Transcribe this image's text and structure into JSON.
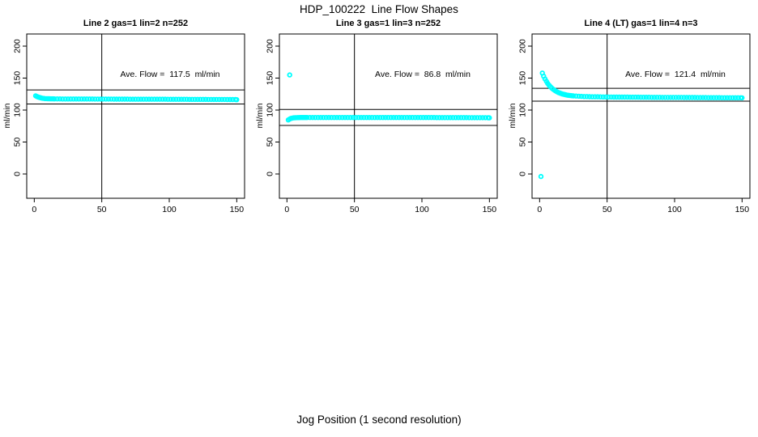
{
  "figure_title": "HDP_100222  Line Flow Shapes",
  "x_axis_title": "Jog Position (1 second resolution)",
  "colors": {
    "points": "#00FFFF",
    "axis": "#000000",
    "background": "#FFFFFF"
  },
  "chart_data": [
    {
      "type": "scatter",
      "title": "Line 2 gas=1 lin=2 n=252",
      "gas": 1,
      "lin": 2,
      "n": 252,
      "ave_flow": 117.5,
      "ave_flow_label": "Ave. Flow =  117.5  ml/min",
      "ylabel": "ml/min",
      "xticks": [
        0,
        50,
        100,
        150
      ],
      "yticks": [
        0,
        50,
        100,
        150,
        200
      ],
      "xlim": [
        -5.6,
        155.8
      ],
      "ylim": [
        -38,
        219
      ],
      "grid": false,
      "legend": false,
      "vline_x": 50,
      "hlines": [
        131.5,
        109.5
      ],
      "points": [
        [
          1,
          122.3
        ],
        [
          2,
          121.2
        ],
        [
          3,
          120.3
        ],
        [
          4,
          119.6
        ],
        [
          5,
          119.0
        ],
        [
          6,
          118.5
        ],
        [
          7,
          118.2
        ],
        [
          8,
          117.9
        ],
        [
          9,
          117.8
        ],
        [
          10,
          117.7
        ],
        [
          11,
          117.7
        ],
        [
          12,
          117.6
        ],
        [
          13,
          117.6
        ],
        [
          14,
          117.6
        ],
        [
          15,
          117.5
        ],
        [
          17,
          117.5
        ],
        [
          19,
          117.5
        ],
        [
          21,
          117.4
        ],
        [
          23,
          117.4
        ],
        [
          25,
          117.4
        ],
        [
          27,
          117.4
        ],
        [
          29,
          117.4
        ],
        [
          31,
          117.4
        ],
        [
          33,
          117.3
        ],
        [
          35,
          117.3
        ],
        [
          37,
          117.3
        ],
        [
          39,
          117.3
        ],
        [
          41,
          117.3
        ],
        [
          43,
          117.3
        ],
        [
          45,
          117.2
        ],
        [
          47,
          117.2
        ],
        [
          49,
          117.2
        ],
        [
          51,
          117.2
        ],
        [
          53,
          117.2
        ],
        [
          55,
          117.2
        ],
        [
          57,
          117.2
        ],
        [
          59,
          117.1
        ],
        [
          61,
          117.1
        ],
        [
          63,
          117.1
        ],
        [
          65,
          117.1
        ],
        [
          67,
          117.1
        ],
        [
          69,
          117.1
        ],
        [
          71,
          117.0
        ],
        [
          73,
          117.0
        ],
        [
          75,
          117.0
        ],
        [
          77,
          117.0
        ],
        [
          79,
          117.0
        ],
        [
          81,
          117.0
        ],
        [
          83,
          117.0
        ],
        [
          85,
          116.9
        ],
        [
          87,
          116.9
        ],
        [
          89,
          116.9
        ],
        [
          91,
          116.9
        ],
        [
          93,
          116.9
        ],
        [
          95,
          116.9
        ],
        [
          97,
          116.9
        ],
        [
          99,
          116.8
        ],
        [
          101,
          116.8
        ],
        [
          103,
          116.8
        ],
        [
          105,
          116.8
        ],
        [
          107,
          116.8
        ],
        [
          109,
          116.8
        ],
        [
          111,
          116.8
        ],
        [
          113,
          116.8
        ],
        [
          115,
          116.7
        ],
        [
          117,
          116.7
        ],
        [
          119,
          116.7
        ],
        [
          121,
          116.7
        ],
        [
          123,
          116.7
        ],
        [
          125,
          116.7
        ],
        [
          127,
          116.7
        ],
        [
          129,
          116.6
        ],
        [
          131,
          116.6
        ],
        [
          133,
          116.6
        ],
        [
          135,
          116.6
        ],
        [
          137,
          116.6
        ],
        [
          139,
          116.6
        ],
        [
          141,
          116.6
        ],
        [
          143,
          116.5
        ],
        [
          145,
          116.5
        ],
        [
          147,
          116.5
        ],
        [
          149,
          116.4
        ],
        [
          150,
          116.2
        ]
      ]
    },
    {
      "type": "scatter",
      "title": "Line 3 gas=1 lin=3 n=252",
      "gas": 1,
      "lin": 3,
      "n": 252,
      "ave_flow": 86.8,
      "ave_flow_label": "Ave. Flow =  86.8  ml/min",
      "ylabel": "ml/min",
      "xticks": [
        0,
        50,
        100,
        150
      ],
      "yticks": [
        0,
        50,
        100,
        150,
        200
      ],
      "xlim": [
        -5.6,
        155.8
      ],
      "ylim": [
        -38,
        219
      ],
      "grid": false,
      "legend": false,
      "vline_x": 50,
      "hlines": [
        101,
        76
      ],
      "points": [
        [
          2,
          155
        ],
        [
          1,
          84.6
        ],
        [
          2,
          86.0
        ],
        [
          3,
          86.9
        ],
        [
          4,
          87.4
        ],
        [
          5,
          87.8
        ],
        [
          6,
          88.0
        ],
        [
          7,
          88.1
        ],
        [
          8,
          88.2
        ],
        [
          9,
          88.2
        ],
        [
          10,
          88.3
        ],
        [
          11,
          88.3
        ],
        [
          12,
          88.3
        ],
        [
          13,
          88.3
        ],
        [
          14,
          88.3
        ],
        [
          15,
          88.4
        ],
        [
          17,
          88.4
        ],
        [
          19,
          88.4
        ],
        [
          21,
          88.4
        ],
        [
          23,
          88.4
        ],
        [
          25,
          88.4
        ],
        [
          27,
          88.4
        ],
        [
          29,
          88.4
        ],
        [
          31,
          88.4
        ],
        [
          33,
          88.4
        ],
        [
          35,
          88.4
        ],
        [
          37,
          88.4
        ],
        [
          39,
          88.4
        ],
        [
          41,
          88.4
        ],
        [
          43,
          88.4
        ],
        [
          45,
          88.4
        ],
        [
          47,
          88.4
        ],
        [
          49,
          88.4
        ],
        [
          51,
          88.4
        ],
        [
          53,
          88.4
        ],
        [
          55,
          88.4
        ],
        [
          57,
          88.4
        ],
        [
          59,
          88.4
        ],
        [
          61,
          88.4
        ],
        [
          63,
          88.4
        ],
        [
          65,
          88.4
        ],
        [
          67,
          88.4
        ],
        [
          69,
          88.4
        ],
        [
          71,
          88.4
        ],
        [
          73,
          88.4
        ],
        [
          75,
          88.4
        ],
        [
          77,
          88.3
        ],
        [
          79,
          88.3
        ],
        [
          81,
          88.3
        ],
        [
          83,
          88.3
        ],
        [
          85,
          88.3
        ],
        [
          87,
          88.3
        ],
        [
          89,
          88.3
        ],
        [
          91,
          88.3
        ],
        [
          93,
          88.3
        ],
        [
          95,
          88.3
        ],
        [
          97,
          88.3
        ],
        [
          99,
          88.3
        ],
        [
          101,
          88.3
        ],
        [
          103,
          88.3
        ],
        [
          105,
          88.3
        ],
        [
          107,
          88.3
        ],
        [
          109,
          88.3
        ],
        [
          111,
          88.2
        ],
        [
          113,
          88.2
        ],
        [
          115,
          88.2
        ],
        [
          117,
          88.2
        ],
        [
          119,
          88.2
        ],
        [
          121,
          88.2
        ],
        [
          123,
          88.2
        ],
        [
          125,
          88.2
        ],
        [
          127,
          88.2
        ],
        [
          129,
          88.2
        ],
        [
          131,
          88.2
        ],
        [
          133,
          88.2
        ],
        [
          135,
          88.1
        ],
        [
          137,
          88.1
        ],
        [
          139,
          88.1
        ],
        [
          141,
          88.1
        ],
        [
          143,
          88.1
        ],
        [
          145,
          88.1
        ],
        [
          147,
          88.1
        ],
        [
          149,
          88.0
        ],
        [
          150,
          87.9
        ]
      ]
    },
    {
      "type": "scatter",
      "title": "Line 4 (LT) gas=1 lin=4 n=3",
      "gas": 1,
      "lin": 4,
      "n": 3,
      "ave_flow": 121.4,
      "ave_flow_label": "Ave. Flow =  121.4  ml/min",
      "ylabel": "ml/min",
      "xticks": [
        0,
        50,
        100,
        150
      ],
      "yticks": [
        0,
        50,
        100,
        150,
        200
      ],
      "xlim": [
        -5.6,
        155.8
      ],
      "ylim": [
        -38,
        219
      ],
      "grid": false,
      "legend": false,
      "vline_x": 50,
      "hlines": [
        134,
        114
      ],
      "points": [
        [
          1,
          -4
        ],
        [
          2,
          157.8
        ],
        [
          3,
          152.9
        ],
        [
          4,
          148.6
        ],
        [
          5,
          144.9
        ],
        [
          6,
          141.7
        ],
        [
          7,
          138.9
        ],
        [
          8,
          136.5
        ],
        [
          9,
          134.4
        ],
        [
          10,
          132.6
        ],
        [
          11,
          131.0
        ],
        [
          12,
          129.7
        ],
        [
          13,
          128.5
        ],
        [
          14,
          127.4
        ],
        [
          15,
          126.6
        ],
        [
          16,
          125.8
        ],
        [
          17,
          125.1
        ],
        [
          18,
          124.6
        ],
        [
          19,
          124.0
        ],
        [
          20,
          123.6
        ],
        [
          21,
          123.2
        ],
        [
          22,
          122.9
        ],
        [
          23,
          122.6
        ],
        [
          24,
          122.4
        ],
        [
          25,
          122.2
        ],
        [
          27,
          121.9
        ],
        [
          29,
          121.6
        ],
        [
          31,
          121.4
        ],
        [
          33,
          121.2
        ],
        [
          35,
          121.1
        ],
        [
          37,
          120.9
        ],
        [
          39,
          120.8
        ],
        [
          41,
          120.7
        ],
        [
          43,
          120.7
        ],
        [
          45,
          120.6
        ],
        [
          47,
          120.5
        ],
        [
          49,
          120.5
        ],
        [
          51,
          120.4
        ],
        [
          53,
          120.4
        ],
        [
          55,
          120.3
        ],
        [
          57,
          120.3
        ],
        [
          59,
          120.3
        ],
        [
          61,
          120.2
        ],
        [
          63,
          120.2
        ],
        [
          65,
          120.2
        ],
        [
          67,
          120.1
        ],
        [
          69,
          120.1
        ],
        [
          71,
          120.1
        ],
        [
          73,
          120.1
        ],
        [
          75,
          120.0
        ],
        [
          77,
          120.0
        ],
        [
          79,
          120.0
        ],
        [
          81,
          120.0
        ],
        [
          83,
          119.9
        ],
        [
          85,
          119.9
        ],
        [
          87,
          119.9
        ],
        [
          89,
          119.9
        ],
        [
          91,
          119.8
        ],
        [
          93,
          119.8
        ],
        [
          95,
          119.8
        ],
        [
          97,
          119.8
        ],
        [
          99,
          119.7
        ],
        [
          101,
          119.7
        ],
        [
          103,
          119.7
        ],
        [
          105,
          119.7
        ],
        [
          107,
          119.6
        ],
        [
          109,
          119.6
        ],
        [
          111,
          119.6
        ],
        [
          113,
          119.6
        ],
        [
          115,
          119.6
        ],
        [
          117,
          119.5
        ],
        [
          119,
          119.5
        ],
        [
          121,
          119.5
        ],
        [
          123,
          119.5
        ],
        [
          125,
          119.4
        ],
        [
          127,
          119.4
        ],
        [
          129,
          119.4
        ],
        [
          131,
          119.4
        ],
        [
          133,
          119.4
        ],
        [
          135,
          119.3
        ],
        [
          137,
          119.3
        ],
        [
          139,
          119.3
        ],
        [
          141,
          119.3
        ],
        [
          143,
          119.2
        ],
        [
          145,
          119.2
        ],
        [
          147,
          119.2
        ],
        [
          149,
          119.2
        ],
        [
          150,
          119.1
        ]
      ]
    }
  ]
}
